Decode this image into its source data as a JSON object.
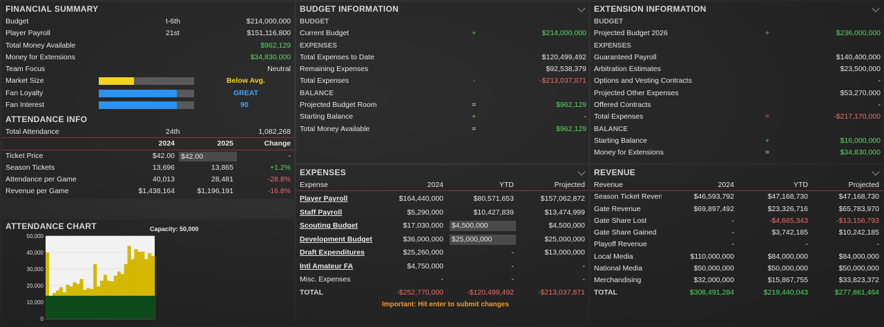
{
  "financial": {
    "title": "FINANCIAL SUMMARY",
    "budget": {
      "label": "Budget",
      "rank": "t-6th",
      "value": "$214,000,000"
    },
    "payroll": {
      "label": "Player Payroll",
      "rank": "21st",
      "value": "$151,116,800"
    },
    "money_available": {
      "label": "Total Money Available",
      "value": "$962,129"
    },
    "money_ext": {
      "label": "Money for Extensions",
      "value": "$34,830,000"
    },
    "team_focus": {
      "label": "Team Focus",
      "value": "Neutral"
    },
    "market": {
      "label": "Market Size",
      "value": "Below Avg.",
      "level": 0.37,
      "color": "#f5d21f"
    },
    "loyalty": {
      "label": "Fan Loyalty",
      "value": "GREAT",
      "level": 0.82,
      "color": "#2a92f0"
    },
    "interest": {
      "label": "Fan Interest",
      "value": "90",
      "level": 0.82,
      "color": "#2a92f0"
    }
  },
  "attendance": {
    "title": "ATTENDANCE INFO",
    "total": {
      "label": "Total Attendance",
      "rank": "24th",
      "value": "1,082,268"
    },
    "headers": [
      "2024",
      "2025",
      "Change"
    ],
    "rows": [
      {
        "label": "Ticket Price",
        "y2024": "$42.00",
        "y2025": "$42.00",
        "change": "-"
      },
      {
        "label": "Season Tickets",
        "y2024": "13,696",
        "y2025": "13,865",
        "change": "+1.2%"
      },
      {
        "label": "Attendance per Game",
        "y2024": "40,013",
        "y2025": "28,481",
        "change": "-28.8%"
      },
      {
        "label": "Revenue per Game",
        "y2024": "$1,438,164",
        "y2025": "$1,196,191",
        "change": "-16.8%"
      }
    ]
  },
  "attendance_chart": {
    "title": "ATTENDANCE CHART",
    "capacity": "Capacity: 50,000",
    "ticks": [
      "50,000",
      "40,000",
      "30,000",
      "20,000",
      "10,000",
      "0"
    ],
    "season_tickets": 13865,
    "bar_color": "#d4b800",
    "season_color": "#0c4a1a",
    "values": [
      40000,
      13865,
      15500,
      17000,
      19000,
      16000,
      20500,
      19500,
      22000,
      21000,
      24000,
      17500,
      18500,
      18000,
      33000,
      19500,
      23000,
      26500,
      23000,
      22500,
      26000,
      28500,
      27000,
      33000,
      44000,
      36000,
      42000,
      40500,
      40500,
      36000,
      39500,
      38000
    ]
  },
  "budget_info": {
    "title": "BUDGET INFORMATION",
    "budget_sub": "BUDGET",
    "current": {
      "label": "Current Budget",
      "op": "+",
      "value": "$214,000,000"
    },
    "expenses_sub": "EXPENSES",
    "to_date": {
      "label": "Total Expenses to Date",
      "value": "$120,499,492"
    },
    "remaining": {
      "label": "Remaining Expenses",
      "value": "$92,538,379"
    },
    "total": {
      "label": "Total Expenses",
      "op": "-",
      "value": "-$213,037,871"
    },
    "balance_sub": "BALANCE",
    "projected": {
      "label": "Projected Budget Room",
      "op": "=",
      "value": "$962,129"
    },
    "starting": {
      "label": "Starting Balance",
      "op": "+",
      "value": "-"
    },
    "money": {
      "label": "Total Money Available",
      "op": "=",
      "value": "$962,129"
    }
  },
  "extension": {
    "title": "EXTENSION INFORMATION",
    "budget_sub": "BUDGET",
    "projected": {
      "label": "Projected Budget 2026",
      "op": "+",
      "value": "$236,000,000"
    },
    "expenses_sub": "EXPENSES",
    "guaranteed": {
      "label": "Guaranteed Payroll",
      "value": "$140,400,000"
    },
    "arbitration": {
      "label": "Arbitration Estimates",
      "value": "$23,500,000"
    },
    "options": {
      "label": "Options and Vesting Contracts",
      "value": "-"
    },
    "other": {
      "label": "Projected Other Expenses",
      "value": "$53,270,000"
    },
    "offered": {
      "label": "Offered Contracts",
      "value": "-"
    },
    "total": {
      "label": "Total Expenses",
      "op": "=",
      "value": "-$217,170,000"
    },
    "balance_sub": "BALANCE",
    "starting": {
      "label": "Starting Balance",
      "op": "+",
      "value": "$16,000,000"
    },
    "money": {
      "label": "Money for Extensions",
      "op": "=",
      "value": "$34,830,000"
    }
  },
  "expenses": {
    "title": "EXPENSES",
    "headers": [
      "Expense",
      "2024",
      "YTD",
      "Projected"
    ],
    "rows": [
      {
        "label": "Player Payroll",
        "y2024": "$164,440,000",
        "ytd": "$80,571,653",
        "proj": "$157,062,872"
      },
      {
        "label": "Staff Payroll",
        "y2024": "$5,290,000",
        "ytd": "$10,427,839",
        "proj": "$13,474,999"
      },
      {
        "label": "Scouting Budget",
        "y2024": "$17,030,000",
        "ytd": "$4,500,000",
        "proj": "$4,500,000"
      },
      {
        "label": "Development Budget",
        "y2024": "$36,000,000",
        "ytd": "$25,000,000",
        "proj": "$25,000,000"
      },
      {
        "label": "Draft Expenditures",
        "y2024": "$25,260,000",
        "ytd": "-",
        "proj": "$13,000,000"
      },
      {
        "label": "Intl Amateur FA",
        "y2024": "$4,750,000",
        "ytd": "-",
        "proj": "-"
      },
      {
        "label": "Misc. Expenses",
        "y2024": "-",
        "ytd": "-",
        "proj": "-"
      }
    ],
    "total": {
      "label": "TOTAL",
      "y2024": "-$252,770,000",
      "ytd": "-$120,499,492",
      "proj": "-$213,037,871"
    },
    "note": "Important: Hit enter to submit changes"
  },
  "revenue": {
    "title": "REVENUE",
    "headers": [
      "Revenue",
      "2024",
      "YTD",
      "Projected"
    ],
    "rows": [
      {
        "label": "Season Ticket Revenue",
        "y2024": "$46,593,792",
        "ytd": "$47,168,730",
        "proj": "$47,168,730"
      },
      {
        "label": "Gate Revenue",
        "y2024": "$69,897,492",
        "ytd": "$23,326,716",
        "proj": "$65,783,970"
      },
      {
        "label": "Gate Share Lost",
        "y2024": "-",
        "ytd": "-$4,665,343",
        "proj": "-$13,156,793"
      },
      {
        "label": "Gate Share Gained",
        "y2024": "-",
        "ytd": "$3,742,185",
        "proj": "$10,242,185"
      },
      {
        "label": "Playoff Revenue",
        "y2024": "-",
        "ytd": "-",
        "proj": "-"
      },
      {
        "label": "Local Media",
        "y2024": "$110,000,000",
        "ytd": "$84,000,000",
        "proj": "$84,000,000"
      },
      {
        "label": "National Media",
        "y2024": "$50,000,000",
        "ytd": "$50,000,000",
        "proj": "$50,000,000"
      },
      {
        "label": "Merchandising",
        "y2024": "$32,000,000",
        "ytd": "$15,867,755",
        "proj": "$33,823,372"
      }
    ],
    "total": {
      "label": "TOTAL",
      "y2024": "$308,491,284",
      "ytd": "$219,440,043",
      "proj": "$277,861,464"
    }
  }
}
